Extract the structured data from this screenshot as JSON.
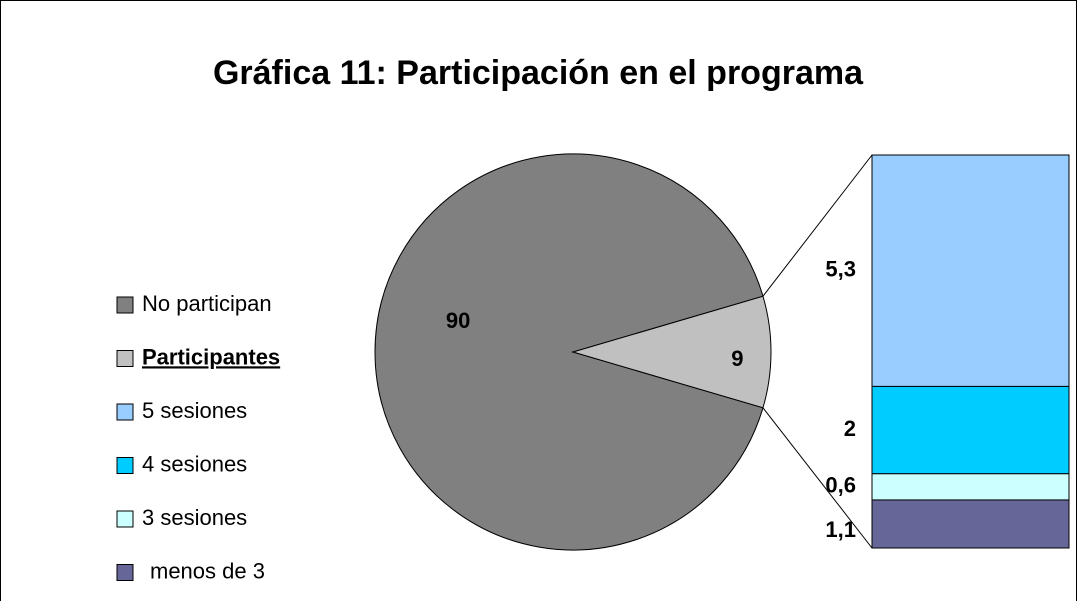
{
  "chart_data": {
    "type": "pie",
    "title": "Gráfica 11: Participación en el programa",
    "categories": [
      "No participan",
      "Participantes"
    ],
    "values": [
      90,
      9
    ],
    "colors": [
      "#808080",
      "#c0c0c0"
    ],
    "breakdown": {
      "categories": [
        "5 sesiones",
        "4 sesiones",
        "3 sesiones",
        "menos de 3"
      ],
      "values": [
        5.3,
        2,
        0.6,
        1.1
      ],
      "value_labels": [
        "5,3",
        "2",
        "0,6",
        "1,1"
      ],
      "colors": [
        "#99ccff",
        "#00ccff",
        "#ccffff",
        "#666699"
      ]
    },
    "legend": "left",
    "highlight": "Participantes"
  }
}
